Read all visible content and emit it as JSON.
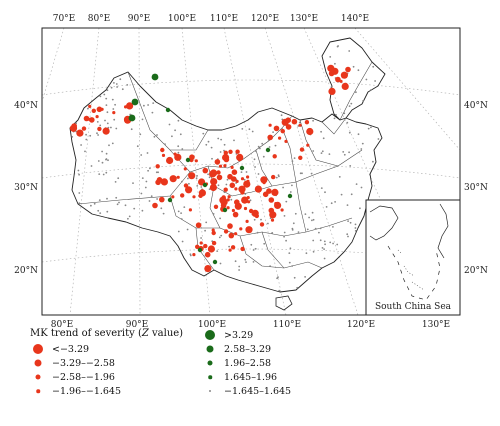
{
  "map": {
    "top_lon_labels": [
      "70°E",
      "80°E",
      "90°E",
      "100°E",
      "110°E",
      "120°E",
      "130°E",
      "140°E"
    ],
    "bottom_lon_labels": [
      "80°E",
      "90°E",
      "100°E",
      "110°E",
      "120°E",
      "130°E"
    ],
    "left_lat_labels": [
      "40°N",
      "30°N",
      "20°N"
    ],
    "right_lat_labels": [
      "40°N",
      "30°N",
      "20°N"
    ],
    "inset_label": "South China Sea",
    "colors": {
      "decreasing": "#e8361c",
      "increasing": "#1a6b1a",
      "insignificant": "#888888",
      "outline": "#222222",
      "graticule": "#aaaaaa"
    }
  },
  "legend": {
    "title_prefix": "MK trend of severity (",
    "title_italic": "Z",
    "title_suffix": " value)",
    "decreasing": [
      "<−3.29",
      "−3.29–−2.58",
      "−2.58–−1.96",
      "−1.96–−1.645"
    ],
    "increasing": [
      ">3.29",
      "2.58–3.29",
      "1.96–2.58",
      "1.645–1.96",
      "−1.645–1.645"
    ]
  }
}
